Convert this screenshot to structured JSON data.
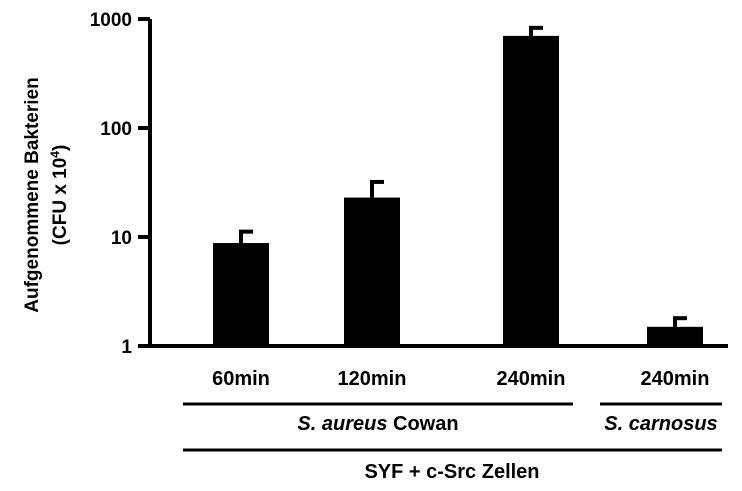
{
  "chart_data": {
    "type": "bar",
    "ylabel_line1": "Aufgenommene Bakterien",
    "ylabel_line2_prefix": "(CFU x 10",
    "ylabel_line2_exp": "4",
    "ylabel_line2_suffix": ")",
    "yscale": "log",
    "ylim": [
      1,
      1000
    ],
    "yticks": [
      {
        "value": 1,
        "label": "1"
      },
      {
        "value": 10,
        "label": "10"
      },
      {
        "value": 100,
        "label": "100"
      },
      {
        "value": 1000,
        "label": "1000"
      }
    ],
    "categories": [
      "60min",
      "120min",
      "240min",
      "240min"
    ],
    "values": [
      8.8,
      23,
      700,
      1.5
    ],
    "errors": [
      2.4,
      9,
      130,
      0.3
    ],
    "bar_color": "#000000",
    "groups": [
      {
        "italic": "S. aureus",
        "normal": " Cowan",
        "span": [
          0,
          2
        ]
      },
      {
        "italic": "S. carnosus",
        "normal": "",
        "span": [
          3,
          3
        ]
      }
    ],
    "supergroup": {
      "label": "SYF + c-Src Zellen",
      "span": [
        0,
        3
      ]
    }
  }
}
